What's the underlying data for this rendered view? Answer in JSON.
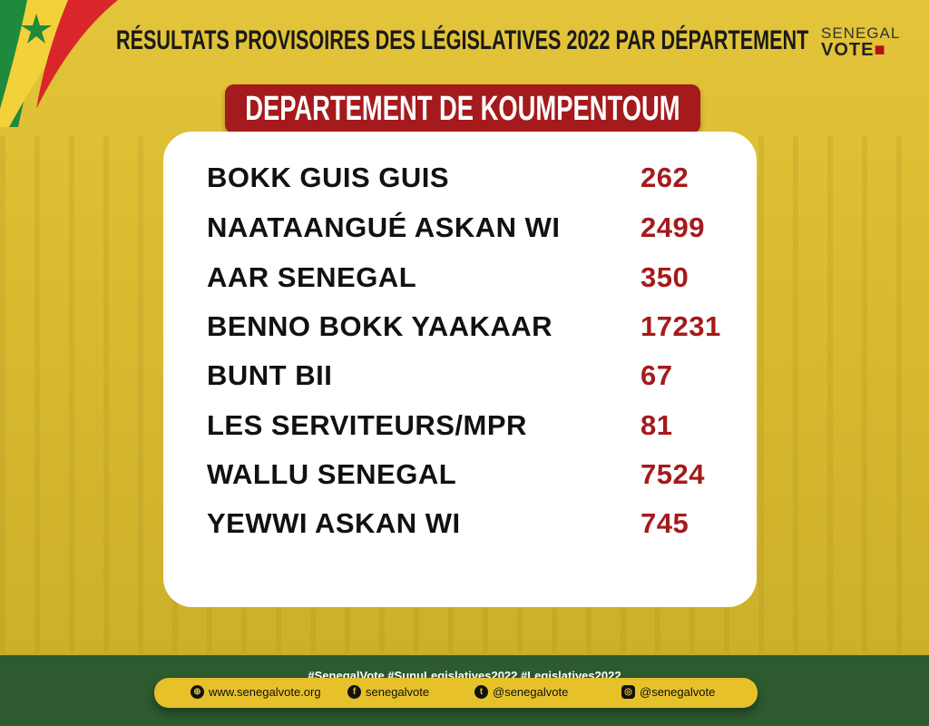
{
  "header": {
    "title": "RÉSULTATS PROVISOIRES DES LÉGISLATIVES 2022 PAR DÉPARTEMENT",
    "logo_line1": "SENEGAL",
    "logo_line2": "VOTE"
  },
  "banner": {
    "title": "DEPARTEMENT DE KOUMPENTOUM"
  },
  "results": [
    {
      "party": "BOKK GUIS GUIS",
      "votes": "262"
    },
    {
      "party": "NAATAANGUÉ ASKAN WI",
      "votes": "2499"
    },
    {
      "party": "AAR SENEGAL",
      "votes": "350"
    },
    {
      "party": "BENNO BOKK YAAKAAR",
      "votes": "17231"
    },
    {
      "party": "BUNT BII",
      "votes": "67"
    },
    {
      "party": "LES SERVITEURS/MPR",
      "votes": "81"
    },
    {
      "party": "WALLU SENEGAL",
      "votes": "7524"
    },
    {
      "party": "YEWWI ASKAN WI",
      "votes": "745"
    }
  ],
  "footer": {
    "hashtags": "#SenegalVote  #SunuLegislatives2022  #Legislatives2022",
    "website": "www.senegalvote.org",
    "facebook": "senegalvote",
    "twitter": "@senegalvote",
    "instagram": "@senegalvote"
  },
  "colors": {
    "accent_red": "#a51a1c",
    "background_yellow": "#e3c43a",
    "footer_green": "#2d5a2f"
  }
}
